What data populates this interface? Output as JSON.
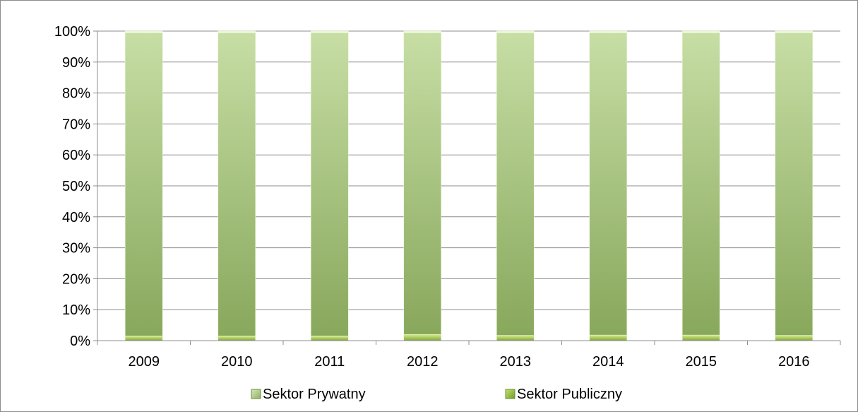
{
  "chart_data": {
    "type": "bar",
    "stacked": true,
    "percent_stacked": true,
    "categories": [
      "2009",
      "2010",
      "2011",
      "2012",
      "2013",
      "2014",
      "2015",
      "2016"
    ],
    "series": [
      {
        "name": "Sektor Publiczny",
        "values": [
          1.5,
          1.5,
          1.5,
          2.0,
          1.7,
          1.8,
          1.8,
          1.7
        ],
        "color": "#7fa53d"
      },
      {
        "name": "Sektor Prywatny",
        "values": [
          98.5,
          98.5,
          98.5,
          98.0,
          98.3,
          98.2,
          98.2,
          98.3
        ],
        "color": "#a9c97a"
      }
    ],
    "ylim": [
      0,
      100
    ],
    "yticks": [
      "0%",
      "10%",
      "20%",
      "30%",
      "40%",
      "50%",
      "60%",
      "70%",
      "80%",
      "90%",
      "100%"
    ],
    "grid": true,
    "legend": [
      {
        "name": "Sektor Prywatny",
        "color": "#a9c97a"
      },
      {
        "name": "Sektor Publiczny",
        "color": "#7fa53d"
      }
    ],
    "legend_position": "bottom"
  }
}
